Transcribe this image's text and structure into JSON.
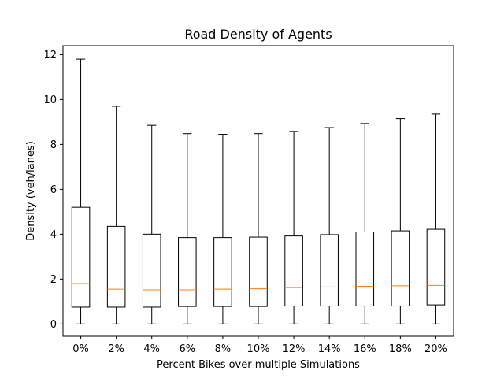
{
  "chart_data": {
    "type": "box",
    "title": "Road Density of Agents",
    "xlabel": "Percent Bikes over multiple Simulations",
    "ylabel": "Density (veh/lanes)",
    "ylim": [
      -0.55,
      12.4
    ],
    "yticks": [
      0,
      2,
      4,
      6,
      8,
      10,
      12
    ],
    "categories": [
      "0%",
      "2%",
      "4%",
      "6%",
      "8%",
      "10%",
      "12%",
      "14%",
      "16%",
      "18%",
      "20%"
    ],
    "boxes": [
      {
        "whisker_low": 0,
        "q1": 0.75,
        "median": 1.8,
        "q3": 5.2,
        "whisker_high": 11.8
      },
      {
        "whisker_low": 0,
        "q1": 0.75,
        "median": 1.55,
        "q3": 4.35,
        "whisker_high": 9.7
      },
      {
        "whisker_low": 0,
        "q1": 0.75,
        "median": 1.52,
        "q3": 4.0,
        "whisker_high": 8.85
      },
      {
        "whisker_low": 0,
        "q1": 0.78,
        "median": 1.52,
        "q3": 3.85,
        "whisker_high": 8.48
      },
      {
        "whisker_low": 0,
        "q1": 0.78,
        "median": 1.55,
        "q3": 3.85,
        "whisker_high": 8.45
      },
      {
        "whisker_low": 0,
        "q1": 0.78,
        "median": 1.57,
        "q3": 3.87,
        "whisker_high": 8.48
      },
      {
        "whisker_low": 0,
        "q1": 0.8,
        "median": 1.62,
        "q3": 3.92,
        "whisker_high": 8.58
      },
      {
        "whisker_low": 0,
        "q1": 0.8,
        "median": 1.65,
        "q3": 3.98,
        "whisker_high": 8.75
      },
      {
        "whisker_low": 0,
        "q1": 0.8,
        "median": 1.68,
        "q3": 4.1,
        "whisker_high": 8.93
      },
      {
        "whisker_low": 0,
        "q1": 0.8,
        "median": 1.7,
        "q3": 4.15,
        "whisker_high": 9.15
      },
      {
        "whisker_low": 0,
        "q1": 0.85,
        "median": 1.72,
        "q3": 4.22,
        "whisker_high": 9.35
      }
    ],
    "grid": false,
    "colors": {
      "box": "#000000",
      "median": "#ff7f0e"
    }
  }
}
